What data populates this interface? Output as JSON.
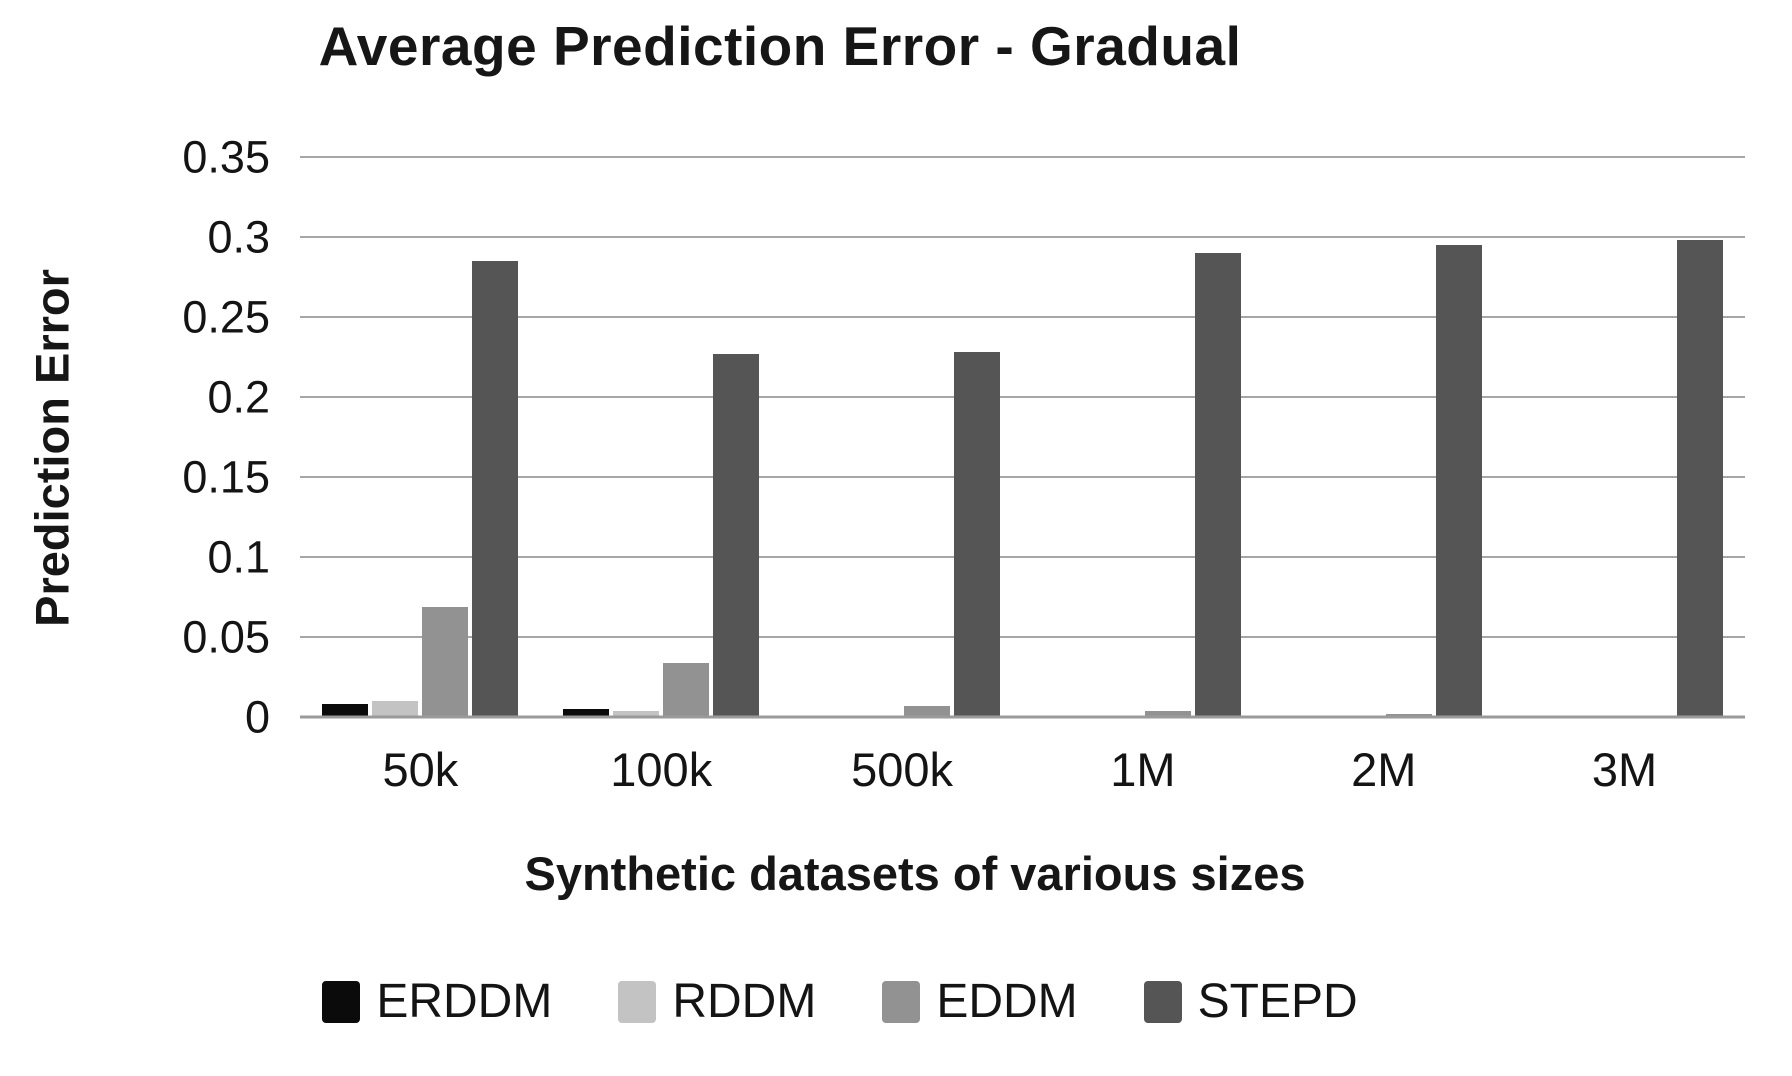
{
  "chart_data": {
    "type": "bar",
    "title": "Average Prediction Error - Gradual",
    "xlabel": "Synthetic datasets of various sizes",
    "ylabel": "Prediction Error",
    "ylim": [
      0,
      0.35
    ],
    "ytick_labels": [
      "0.35",
      "0.3",
      "0.25",
      "0.2",
      "0.15",
      "0.1",
      "0.05",
      "0"
    ],
    "grid": true,
    "legend_position": "bottom",
    "categories": [
      "50k",
      "100k",
      "500k",
      "1M",
      "2M",
      "3M"
    ],
    "series": [
      {
        "name": "ERDDM",
        "color": "#0b0b0b",
        "values": [
          0.008,
          0.005,
          0,
          0,
          0,
          0
        ]
      },
      {
        "name": "RDDM",
        "color": "#c3c3c3",
        "values": [
          0.01,
          0.004,
          0,
          0,
          0,
          0
        ]
      },
      {
        "name": "EDDM",
        "color": "#929292",
        "values": [
          0.069,
          0.034,
          0.007,
          0.004,
          0.002,
          0
        ]
      },
      {
        "name": "STEPD",
        "color": "#555555",
        "values": [
          0.285,
          0.227,
          0.228,
          0.29,
          0.295,
          0.298
        ]
      }
    ]
  },
  "colors": {
    "gridline": "#a6a6a6",
    "axis_line": "#9a9a9a",
    "text": "#161616",
    "background": "#ffffff"
  }
}
